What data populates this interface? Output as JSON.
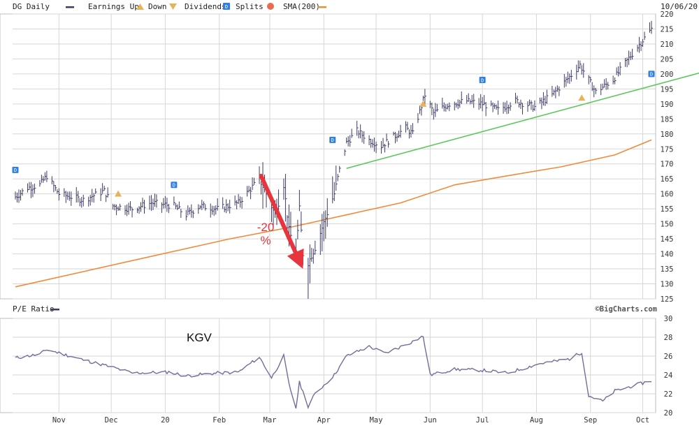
{
  "header": {
    "symbol_label": "DG Daily",
    "earnings_up": "Earnings Up",
    "earnings_down": "Down",
    "dividends": "Dividends",
    "dividend_icon": "D",
    "splits": "Splits",
    "sma": "SMA(200)",
    "date": "10/06/20",
    "credit": "©BigCharts.com"
  },
  "colors": {
    "price": "#3b3b6b",
    "sma": "#f08a3c",
    "trendline": "#5bc85b",
    "arrow": "#e8343c",
    "dividend": "#2f80e0",
    "earnings_up": "#e6b35a",
    "pe_line": "#6e6e9c",
    "grid": "#d6d6d6",
    "axis_text": "#333333"
  },
  "annotations": {
    "arrow_label_line1": "-20",
    "arrow_label_line2": "%",
    "pe_label": "KGV"
  },
  "chart_data": [
    {
      "type": "bar",
      "subtype": "ohlc",
      "title": "DG Daily",
      "x_range": [
        "2019-10-07",
        "2020-10-06"
      ],
      "month_labels": [
        "Nov",
        "Dec",
        "20",
        "Feb",
        "Mar",
        "Apr",
        "May",
        "Jun",
        "Jul",
        "Aug",
        "Sep",
        "Oct"
      ],
      "y_range": [
        125,
        220
      ],
      "y_ticks": [
        125,
        130,
        135,
        140,
        145,
        150,
        155,
        160,
        165,
        170,
        175,
        180,
        185,
        190,
        195,
        200,
        205,
        210,
        215,
        220
      ],
      "price_path": [
        [
          "2019-10-07",
          159
        ],
        [
          "2019-10-14",
          162
        ],
        [
          "2019-10-21",
          163
        ],
        [
          "2019-10-25",
          166
        ],
        [
          "2019-11-01",
          160
        ],
        [
          "2019-11-15",
          158
        ],
        [
          "2019-11-27",
          161
        ],
        [
          "2019-12-02",
          156
        ],
        [
          "2019-12-13",
          155
        ],
        [
          "2019-12-24",
          157
        ],
        [
          "2020-01-06",
          156
        ],
        [
          "2020-01-13",
          153
        ],
        [
          "2020-01-21",
          156
        ],
        [
          "2020-01-31",
          155
        ],
        [
          "2020-02-12",
          157
        ],
        [
          "2020-02-24",
          165
        ],
        [
          "2020-02-28",
          160
        ],
        [
          "2020-03-04",
          153
        ],
        [
          "2020-03-09",
          163
        ],
        [
          "2020-03-12",
          148
        ],
        [
          "2020-03-16",
          140
        ],
        [
          "2020-03-18",
          155
        ],
        [
          "2020-03-20",
          140
        ],
        [
          "2020-03-23",
          137
        ],
        [
          "2020-03-27",
          142
        ],
        [
          "2020-04-02",
          152
        ],
        [
          "2020-04-07",
          160
        ],
        [
          "2020-04-10",
          168
        ],
        [
          "2020-04-14",
          177
        ],
        [
          "2020-04-20",
          181
        ],
        [
          "2020-04-27",
          178
        ],
        [
          "2020-05-04",
          176
        ],
        [
          "2020-05-11",
          179
        ],
        [
          "2020-05-18",
          182
        ],
        [
          "2020-05-22",
          180
        ],
        [
          "2020-05-29",
          193
        ],
        [
          "2020-06-03",
          187
        ],
        [
          "2020-06-12",
          190
        ],
        [
          "2020-06-22",
          191
        ],
        [
          "2020-07-01",
          190
        ],
        [
          "2020-07-10",
          188
        ],
        [
          "2020-07-20",
          191
        ],
        [
          "2020-07-31",
          189
        ],
        [
          "2020-08-10",
          193
        ],
        [
          "2020-08-20",
          199
        ],
        [
          "2020-08-26",
          203
        ],
        [
          "2020-08-31",
          198
        ],
        [
          "2020-09-04",
          194
        ],
        [
          "2020-09-14",
          198
        ],
        [
          "2020-09-24",
          206
        ],
        [
          "2020-10-06",
          215
        ]
      ],
      "intraday_low": [
        "2020-03-23",
        125
      ],
      "series": [
        {
          "name": "SMA(200)",
          "values": [
            [
              "2019-10-07",
              129
            ],
            [
              "2019-12-15",
              138
            ],
            [
              "2020-02-07",
              145
            ],
            [
              "2020-03-14",
              149
            ],
            [
              "2020-04-14",
              153
            ],
            [
              "2020-05-15",
              157
            ],
            [
              "2020-06-15",
              163
            ],
            [
              "2020-07-15",
              166
            ],
            [
              "2020-08-15",
              169
            ],
            [
              "2020-09-15",
              173
            ],
            [
              "2020-10-06",
              178
            ]
          ]
        },
        {
          "name": "",
          "values": [
            [
              "2020-04-14",
              168.5
            ],
            [
              "2020-10-06",
              196
            ]
          ]
        }
      ],
      "arrow": {
        "from": [
          "2020-02-25",
          166
        ],
        "to": [
          "2020-03-20",
          135
        ]
      },
      "dividends": [
        [
          "2019-10-07",
          168
        ],
        [
          "2020-01-06",
          163
        ],
        [
          "2020-04-06",
          178
        ],
        [
          "2020-07-01",
          198
        ],
        [
          "2020-10-06",
          200
        ]
      ],
      "earnings_up": [
        [
          "2019-12-05",
          160
        ],
        [
          "2020-05-28",
          190
        ],
        [
          "2020-08-27",
          192
        ]
      ]
    },
    {
      "type": "line",
      "title": "P/E Ratio",
      "ylim": [
        20,
        30
      ],
      "y_ticks": [
        20,
        22,
        24,
        26,
        28,
        30
      ],
      "series": [
        {
          "name": "P/E Ratio",
          "values": [
            [
              "2019-10-07",
              25.8
            ],
            [
              "2019-10-21",
              26.2
            ],
            [
              "2019-10-25",
              26.7
            ],
            [
              "2019-11-15",
              25.6
            ],
            [
              "2019-12-02",
              24.8
            ],
            [
              "2019-12-13",
              24.2
            ],
            [
              "2020-01-03",
              24.3
            ],
            [
              "2020-01-13",
              23.9
            ],
            [
              "2020-01-31",
              24.2
            ],
            [
              "2020-02-12",
              24.3
            ],
            [
              "2020-02-24",
              25.9
            ],
            [
              "2020-03-02",
              23.7
            ],
            [
              "2020-03-09",
              26.0
            ],
            [
              "2020-03-12",
              23.0
            ],
            [
              "2020-03-16",
              20.5
            ],
            [
              "2020-03-18",
              23.2
            ],
            [
              "2020-03-23",
              20.7
            ],
            [
              "2020-03-27",
              22.0
            ],
            [
              "2020-04-07",
              24.0
            ],
            [
              "2020-04-14",
              26.0
            ],
            [
              "2020-04-27",
              27.0
            ],
            [
              "2020-05-06",
              26.3
            ],
            [
              "2020-05-18",
              27.2
            ],
            [
              "2020-05-28",
              28.1
            ],
            [
              "2020-06-01",
              24.0
            ],
            [
              "2020-06-15",
              24.6
            ],
            [
              "2020-07-01",
              24.5
            ],
            [
              "2020-07-15",
              24.2
            ],
            [
              "2020-08-03",
              25.2
            ],
            [
              "2020-08-20",
              25.7
            ],
            [
              "2020-08-27",
              26.4
            ],
            [
              "2020-08-31",
              21.8
            ],
            [
              "2020-09-08",
              21.2
            ],
            [
              "2020-09-15",
              22.3
            ],
            [
              "2020-10-06",
              23.4
            ]
          ]
        }
      ]
    }
  ]
}
